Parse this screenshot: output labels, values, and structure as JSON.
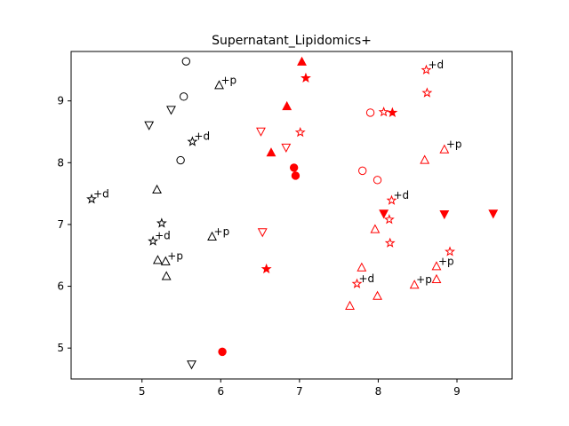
{
  "chart_data": {
    "type": "scatter",
    "title": "Supernatant_Lipidomics+",
    "xlabel": "",
    "ylabel": "",
    "xlim": [
      4.1,
      9.7
    ],
    "ylim": [
      4.5,
      9.8
    ],
    "xticks": [
      5,
      6,
      7,
      8,
      9
    ],
    "yticks": [
      5,
      6,
      7,
      8,
      9
    ],
    "grid": false,
    "colors": {
      "black": "#000000",
      "red": "#ff0000"
    },
    "points": [
      {
        "x": 5.56,
        "y": 9.64,
        "marker": "circle",
        "color": "black",
        "filled": false,
        "label": ""
      },
      {
        "x": 5.53,
        "y": 9.07,
        "marker": "circle",
        "color": "black",
        "filled": false,
        "label": ""
      },
      {
        "x": 5.49,
        "y": 8.04,
        "marker": "circle",
        "color": "black",
        "filled": false,
        "label": ""
      },
      {
        "x": 5.98,
        "y": 9.25,
        "marker": "triangle-up",
        "color": "black",
        "filled": false,
        "label": "+p"
      },
      {
        "x": 5.37,
        "y": 8.86,
        "marker": "triangle-down",
        "color": "black",
        "filled": false,
        "label": ""
      },
      {
        "x": 5.09,
        "y": 8.61,
        "marker": "triangle-down",
        "color": "black",
        "filled": false,
        "label": ""
      },
      {
        "x": 5.64,
        "y": 8.34,
        "marker": "star",
        "color": "black",
        "filled": false,
        "label": "+d"
      },
      {
        "x": 5.19,
        "y": 7.56,
        "marker": "triangle-up",
        "color": "black",
        "filled": false,
        "label": ""
      },
      {
        "x": 4.36,
        "y": 7.41,
        "marker": "star",
        "color": "black",
        "filled": false,
        "label": "+d"
      },
      {
        "x": 5.25,
        "y": 7.02,
        "marker": "star",
        "color": "black",
        "filled": false,
        "label": ""
      },
      {
        "x": 5.14,
        "y": 6.73,
        "marker": "star",
        "color": "black",
        "filled": false,
        "label": "+d"
      },
      {
        "x": 5.89,
        "y": 6.8,
        "marker": "triangle-up",
        "color": "black",
        "filled": false,
        "label": "+p"
      },
      {
        "x": 5.2,
        "y": 6.42,
        "marker": "triangle-up",
        "color": "black",
        "filled": false,
        "label": ""
      },
      {
        "x": 5.3,
        "y": 6.4,
        "marker": "triangle-up",
        "color": "black",
        "filled": false,
        "label": "+p"
      },
      {
        "x": 5.31,
        "y": 6.16,
        "marker": "triangle-up",
        "color": "black",
        "filled": false,
        "label": ""
      },
      {
        "x": 5.63,
        "y": 4.74,
        "marker": "triangle-down",
        "color": "black",
        "filled": false,
        "label": ""
      },
      {
        "x": 7.03,
        "y": 9.63,
        "marker": "triangle-up",
        "color": "red",
        "filled": true,
        "label": ""
      },
      {
        "x": 7.08,
        "y": 9.37,
        "marker": "star",
        "color": "red",
        "filled": true,
        "label": ""
      },
      {
        "x": 6.84,
        "y": 8.91,
        "marker": "triangle-up",
        "color": "red",
        "filled": true,
        "label": ""
      },
      {
        "x": 6.51,
        "y": 8.51,
        "marker": "triangle-down",
        "color": "red",
        "filled": false,
        "label": ""
      },
      {
        "x": 7.01,
        "y": 8.49,
        "marker": "star",
        "color": "red",
        "filled": false,
        "label": ""
      },
      {
        "x": 6.83,
        "y": 8.25,
        "marker": "triangle-down",
        "color": "red",
        "filled": false,
        "label": ""
      },
      {
        "x": 6.64,
        "y": 8.16,
        "marker": "triangle-up",
        "color": "red",
        "filled": true,
        "label": ""
      },
      {
        "x": 6.93,
        "y": 7.92,
        "marker": "circle",
        "color": "red",
        "filled": true,
        "label": ""
      },
      {
        "x": 6.95,
        "y": 7.79,
        "marker": "circle",
        "color": "red",
        "filled": true,
        "label": ""
      },
      {
        "x": 6.53,
        "y": 6.88,
        "marker": "triangle-down",
        "color": "red",
        "filled": false,
        "label": ""
      },
      {
        "x": 6.58,
        "y": 6.28,
        "marker": "star",
        "color": "red",
        "filled": true,
        "label": ""
      },
      {
        "x": 6.02,
        "y": 4.94,
        "marker": "circle",
        "color": "red",
        "filled": true,
        "label": ""
      },
      {
        "x": 8.61,
        "y": 9.5,
        "marker": "star",
        "color": "red",
        "filled": false,
        "label": "+d"
      },
      {
        "x": 8.62,
        "y": 9.13,
        "marker": "star",
        "color": "red",
        "filled": false,
        "label": ""
      },
      {
        "x": 7.9,
        "y": 8.81,
        "marker": "circle",
        "color": "red",
        "filled": false,
        "label": ""
      },
      {
        "x": 8.07,
        "y": 8.82,
        "marker": "star",
        "color": "red",
        "filled": false,
        "label": ""
      },
      {
        "x": 8.18,
        "y": 8.81,
        "marker": "star",
        "color": "red",
        "filled": true,
        "label": ""
      },
      {
        "x": 8.84,
        "y": 8.21,
        "marker": "triangle-up",
        "color": "red",
        "filled": false,
        "label": "+p"
      },
      {
        "x": 8.59,
        "y": 8.04,
        "marker": "triangle-up",
        "color": "red",
        "filled": false,
        "label": ""
      },
      {
        "x": 7.8,
        "y": 7.87,
        "marker": "circle",
        "color": "red",
        "filled": false,
        "label": ""
      },
      {
        "x": 7.99,
        "y": 7.72,
        "marker": "circle",
        "color": "red",
        "filled": false,
        "label": ""
      },
      {
        "x": 8.17,
        "y": 7.39,
        "marker": "star",
        "color": "red",
        "filled": false,
        "label": "+d"
      },
      {
        "x": 8.07,
        "y": 7.18,
        "marker": "triangle-down",
        "color": "red",
        "filled": true,
        "label": ""
      },
      {
        "x": 8.14,
        "y": 7.08,
        "marker": "star",
        "color": "red",
        "filled": false,
        "label": ""
      },
      {
        "x": 8.84,
        "y": 7.17,
        "marker": "triangle-down",
        "color": "red",
        "filled": true,
        "label": ""
      },
      {
        "x": 9.46,
        "y": 7.18,
        "marker": "triangle-down",
        "color": "red",
        "filled": true,
        "label": ""
      },
      {
        "x": 7.96,
        "y": 6.92,
        "marker": "triangle-up",
        "color": "red",
        "filled": false,
        "label": ""
      },
      {
        "x": 8.15,
        "y": 6.7,
        "marker": "star",
        "color": "red",
        "filled": false,
        "label": ""
      },
      {
        "x": 8.91,
        "y": 6.56,
        "marker": "star",
        "color": "red",
        "filled": false,
        "label": ""
      },
      {
        "x": 8.74,
        "y": 6.32,
        "marker": "triangle-up",
        "color": "red",
        "filled": false,
        "label": "+p"
      },
      {
        "x": 7.79,
        "y": 6.3,
        "marker": "triangle-up",
        "color": "red",
        "filled": false,
        "label": ""
      },
      {
        "x": 7.73,
        "y": 6.04,
        "marker": "star",
        "color": "red",
        "filled": false,
        "label": "+d"
      },
      {
        "x": 8.74,
        "y": 6.11,
        "marker": "triangle-up",
        "color": "red",
        "filled": false,
        "label": ""
      },
      {
        "x": 8.46,
        "y": 6.02,
        "marker": "triangle-up",
        "color": "red",
        "filled": false,
        "label": "+p"
      },
      {
        "x": 7.99,
        "y": 5.84,
        "marker": "triangle-up",
        "color": "red",
        "filled": false,
        "label": ""
      },
      {
        "x": 7.64,
        "y": 5.68,
        "marker": "triangle-up",
        "color": "red",
        "filled": false,
        "label": ""
      }
    ]
  }
}
